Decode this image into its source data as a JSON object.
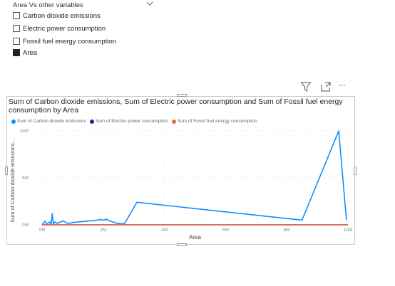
{
  "slicer": {
    "title": "Area Vs other variables",
    "items": [
      {
        "label": "Carbon dioxide emissions",
        "checked": false
      },
      {
        "label": "Electric power consumption",
        "checked": false
      },
      {
        "label": "Fossil fuel energy consumption",
        "checked": false
      },
      {
        "label": "Area",
        "checked": true
      }
    ]
  },
  "visual_header": {
    "icons": [
      "filter-icon",
      "focus-mode-icon",
      "more-options-icon"
    ],
    "more_glyph": "···"
  },
  "chart_data": {
    "type": "line",
    "title": "Sum of Carbon dioxide emissions, Sum of Electric power consumption and Sum of Fossil fuel energy consumption by Area",
    "xlabel": "Area",
    "ylabel": "Sum of Carbon dioxide emissions...",
    "x_ticks": [
      "0M",
      "2M",
      "4M",
      "6M",
      "8M",
      "10M"
    ],
    "y_ticks": [
      "0M",
      "5M",
      "10M"
    ],
    "xlim": [
      0,
      10000000
    ],
    "ylim": [
      0,
      10000000
    ],
    "grid": true,
    "legend_position": "top-left",
    "series": [
      {
        "name": "Sum of Carbon dioxide emissions",
        "color": "#118DFF",
        "x": [
          0,
          100000,
          150000,
          200000,
          250000,
          300000,
          330000,
          370000,
          420000,
          500000,
          600000,
          700000,
          800000,
          900000,
          1000000,
          1500000,
          1800000,
          1900000,
          2000000,
          2100000,
          2200000,
          2400000,
          2600000,
          2700000,
          3100000,
          8500000,
          9700000,
          9950000
        ],
        "y": [
          0,
          400000,
          0,
          200000,
          300000,
          50000,
          1200000,
          100000,
          300000,
          150000,
          300000,
          400000,
          200000,
          150000,
          250000,
          400000,
          500000,
          550000,
          500000,
          600000,
          450000,
          200000,
          100000,
          150000,
          2400000,
          500000,
          10000000,
          500000
        ]
      },
      {
        "name": "Sum of Electric power consumption",
        "color": "#12239E",
        "x": [
          0,
          10000000
        ],
        "y": [
          0,
          0
        ]
      },
      {
        "name": "Sum of Fossil fuel energy consumption",
        "color": "#E66C37",
        "x": [
          0,
          10000000
        ],
        "y": [
          0,
          0
        ]
      }
    ]
  }
}
